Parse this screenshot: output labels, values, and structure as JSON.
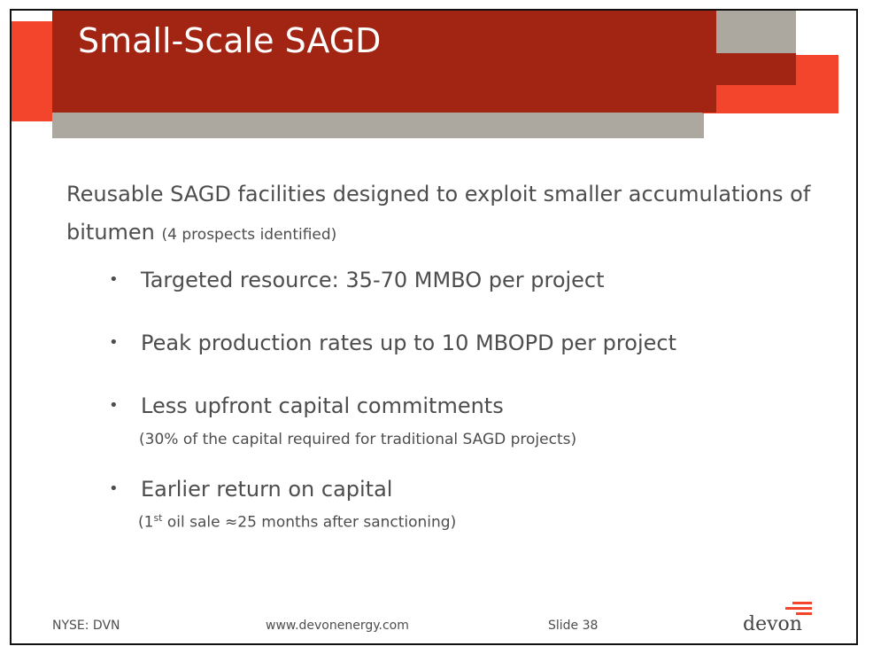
{
  "slide": {
    "title": "Small-Scale SAGD",
    "intro_main": "Reusable SAGD facilities designed to exploit smaller accumulations of bitumen",
    "intro_note": "(4 prospects identified)",
    "bullets": [
      {
        "text": "Targeted resource: 35-70 MMBO per project"
      },
      {
        "text": "Peak production rates up to 10 MBOPD per project"
      },
      {
        "text": "Less upfront capital commitments",
        "note": "(30% of the capital required for traditional SAGD projects)"
      },
      {
        "text": "Earlier return on capital",
        "note_prefix": "(1",
        "note_sup": "st",
        "note_rest": " oil sale ≈25 months after sanctioning)"
      }
    ],
    "bullet_symbol": "•"
  },
  "footer": {
    "ticker": "NYSE: DVN",
    "website": "www.devonenergy.com",
    "slide_number": "Slide 38",
    "logo_text": "devon"
  },
  "colors": {
    "title_band": "#a22514",
    "accent_orange": "#f2452b",
    "accent_gray": "#aca8a0",
    "text": "#4d4d4d"
  }
}
